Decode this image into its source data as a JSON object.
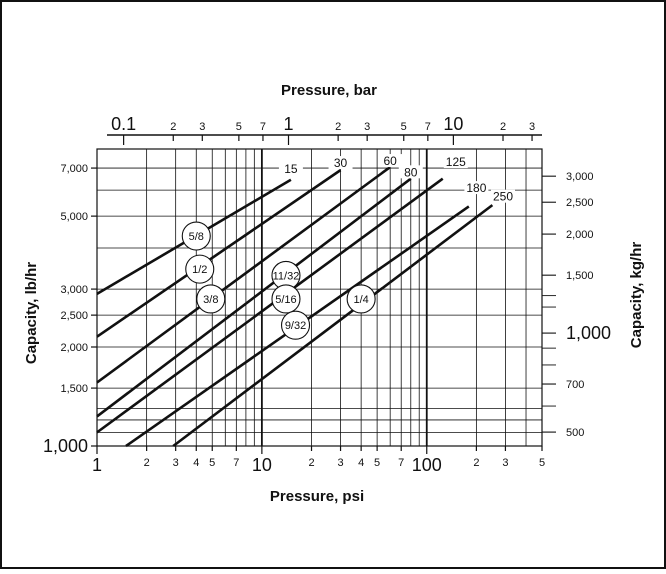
{
  "chart_data": {
    "type": "line",
    "xscale": "log",
    "yscale": "log",
    "xlabel": "Pressure, psi",
    "ylabel": "Capacity, lb/hr",
    "x2label": "Pressure, bar",
    "y2label": "Capacity, kg/hr",
    "xlim": [
      1,
      500
    ],
    "ylim": [
      1000,
      8000
    ],
    "grid": true,
    "x_ticks": [
      {
        "v": 1,
        "t": "1",
        "big": true
      },
      {
        "v": 2,
        "t": "2"
      },
      {
        "v": 3,
        "t": "3"
      },
      {
        "v": 4,
        "t": "4"
      },
      {
        "v": 5,
        "t": "5"
      },
      {
        "v": 7,
        "t": "7"
      },
      {
        "v": 10,
        "t": "10",
        "big": true
      },
      {
        "v": 20,
        "t": "2"
      },
      {
        "v": 30,
        "t": "3"
      },
      {
        "v": 40,
        "t": "4"
      },
      {
        "v": 50,
        "t": "5"
      },
      {
        "v": 70,
        "t": "7"
      },
      {
        "v": 100,
        "t": "100",
        "big": true
      },
      {
        "v": 200,
        "t": "2"
      },
      {
        "v": 300,
        "t": "3"
      },
      {
        "v": 500,
        "t": "5"
      }
    ],
    "x_grid": [
      2,
      3,
      4,
      5,
      6,
      7,
      8,
      9,
      10,
      20,
      30,
      40,
      50,
      60,
      70,
      80,
      90,
      100,
      200,
      300,
      400
    ],
    "y_ticks": [
      {
        "v": 1000,
        "t": "1,000",
        "big": true
      },
      {
        "v": 1500,
        "t": "1,500"
      },
      {
        "v": 2000,
        "t": "2,000"
      },
      {
        "v": 2500,
        "t": "2,500"
      },
      {
        "v": 3000,
        "t": "3,000"
      },
      {
        "v": 5000,
        "t": "5,000"
      },
      {
        "v": 7000,
        "t": "7,000"
      }
    ],
    "y_grid": [
      1100,
      1200,
      1300,
      1500,
      2000,
      2500,
      3000,
      4000,
      5000,
      6000,
      7000
    ],
    "top_ticks": [
      {
        "bar": 0.1,
        "t": "0.1",
        "big": true
      },
      {
        "bar": 0.2,
        "t": "2"
      },
      {
        "bar": 0.3,
        "t": "3"
      },
      {
        "bar": 0.5,
        "t": "5"
      },
      {
        "bar": 0.7,
        "t": "7"
      },
      {
        "bar": 1,
        "t": "1",
        "big": true
      },
      {
        "bar": 2,
        "t": "2"
      },
      {
        "bar": 3,
        "t": "3"
      },
      {
        "bar": 5,
        "t": "5"
      },
      {
        "bar": 7,
        "t": "7"
      },
      {
        "bar": 10,
        "t": "10",
        "big": true
      },
      {
        "bar": 20,
        "t": "2"
      },
      {
        "bar": 30,
        "t": "3"
      }
    ],
    "right_ticks": [
      {
        "kg": 500,
        "t": "500"
      },
      {
        "kg": 700,
        "t": "700"
      },
      {
        "kg": 1000,
        "t": "1,000",
        "big": true
      },
      {
        "kg": 1500,
        "t": "1,500"
      },
      {
        "kg": 2000,
        "t": "2,000"
      },
      {
        "kg": 2500,
        "t": "2,500"
      },
      {
        "kg": 3000,
        "t": "3,000"
      }
    ],
    "right_minor": [
      600,
      800,
      900,
      1200,
      1300
    ],
    "series": [
      {
        "name": "5/8",
        "x": [
          1,
          15
        ],
        "y": [
          2900,
          6450
        ]
      },
      {
        "name": "1/2",
        "x": [
          1,
          30
        ],
        "y": [
          2150,
          6900
        ]
      },
      {
        "name": "3/8",
        "x": [
          1,
          60
        ],
        "y": [
          1560,
          7050
        ]
      },
      {
        "name": "11/32",
        "x": [
          1,
          80
        ],
        "y": [
          1230,
          6500
        ]
      },
      {
        "name": "5/16",
        "x": [
          1,
          125
        ],
        "y": [
          1100,
          6500
        ]
      },
      {
        "name": "9/32",
        "x": [
          1.5,
          180
        ],
        "y": [
          1000,
          5350
        ]
      },
      {
        "name": "1/4",
        "x": [
          2.9,
          250
        ],
        "y": [
          1000,
          5400
        ]
      }
    ],
    "pressure_labels": [
      {
        "t": "15",
        "x": 15,
        "y": 6850
      },
      {
        "t": "30",
        "x": 30,
        "y": 7150
      },
      {
        "t": "60",
        "x": 60,
        "y": 7250
      },
      {
        "t": "80",
        "x": 80,
        "y": 6700
      },
      {
        "t": "125",
        "x": 150,
        "y": 7200
      },
      {
        "t": "180",
        "x": 200,
        "y": 6000
      },
      {
        "t": "250",
        "x": 290,
        "y": 5650
      }
    ],
    "size_labels": [
      {
        "t": "5/8",
        "x": 4.0,
        "y": 4350
      },
      {
        "t": "1/2",
        "x": 4.2,
        "y": 3450
      },
      {
        "t": "3/8",
        "x": 4.9,
        "y": 2800
      },
      {
        "t": "11/32",
        "x": 14.0,
        "y": 3300
      },
      {
        "t": "5/16",
        "x": 14.0,
        "y": 2800
      },
      {
        "t": "9/32",
        "x": 16.0,
        "y": 2330
      },
      {
        "t": "1/4",
        "x": 40.0,
        "y": 2800
      }
    ]
  }
}
